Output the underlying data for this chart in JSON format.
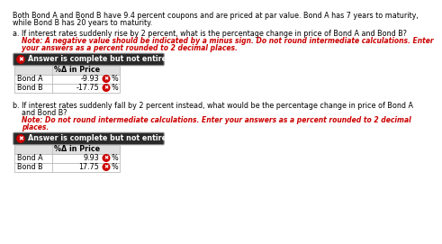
{
  "intro_line1": "Both Bond A and Bond B have 9.4 percent coupons and are priced at par value. Bond A has 7 years to maturity,",
  "intro_line2": "while Bond B has 20 years to maturity.",
  "part_a_q1": "a. If interest rates suddenly rise by 2 percent, what is the percentage change in price of Bond A and Bond B?",
  "part_a_note1": "Note: A negative value should be indicated by a minus sign. Do not round intermediate calculations. Enter",
  "part_a_note2": "your answers as a percent rounded to 2 decimal places.",
  "answer_banner": "Answer is complete but not entirely correct.",
  "col_header": "%Δ in Price",
  "table_a_rows": [
    [
      "Bond A",
      "-9.93",
      "%"
    ],
    [
      "Bond B",
      "-17.75",
      "%"
    ]
  ],
  "part_b_q1": "b. If interest rates suddenly fall by 2 percent instead, what would be the percentage change in price of Bond A",
  "part_b_q2": "and Bond B?",
  "part_b_note1": "Note: Do not round intermediate calculations. Enter your answers as a percent rounded to 2 decimal",
  "part_b_note2": "places.",
  "table_b_rows": [
    [
      "Bond A",
      "9.93",
      "%"
    ],
    [
      "Bond B",
      "17.75",
      "%"
    ]
  ],
  "bg_color": "#ffffff",
  "text_color": "#000000",
  "red_text_color": "#cc0000",
  "banner_bg": "#2a2a2a",
  "table_border_color": "#bbbbbb",
  "icon_color": "#cc0000",
  "header_bg": "#e0e0e0",
  "banner_border_color": "#888888"
}
